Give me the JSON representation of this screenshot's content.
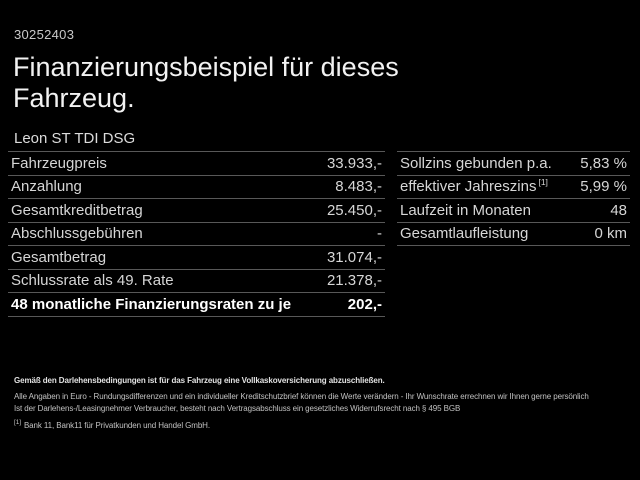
{
  "header": {
    "id_number": "30252403",
    "title": "Finanzierungsbeispiel für dieses Fahrzeug.",
    "vehicle_model": "Leon ST TDI DSG"
  },
  "finance_table": {
    "rows": [
      {
        "label": "Fahrzeugpreis",
        "value": "33.933,-"
      },
      {
        "label": "Anzahlung",
        "value": "8.483,-"
      },
      {
        "label": "Gesamtkreditbetrag",
        "value": "25.450,-"
      },
      {
        "label": "Abschlussgebühren",
        "value": "-"
      },
      {
        "label": "Gesamtbetrag",
        "value": "31.074,-"
      },
      {
        "label": "Schlussrate als 49. Rate",
        "value": "21.378,-"
      },
      {
        "label": "48 monatliche Finanzierungsraten zu je",
        "value": "202,-"
      }
    ]
  },
  "conditions_table": {
    "rows": [
      {
        "label": "Sollzins gebunden p.a.",
        "value": "5,83 %"
      },
      {
        "label": "effektiver Jahreszins",
        "sup": "[1]",
        "value": "5,99 %"
      },
      {
        "label": "Laufzeit in Monaten",
        "value": "48"
      },
      {
        "label": "Gesamtlaufleistung",
        "value": "0 km"
      }
    ]
  },
  "footer": {
    "insurance_note": "Gemäß den Darlehensbedingungen ist für das Fahrzeug eine Vollkaskoversicherung abzuschließen.",
    "disclaimer": "Alle Angaben in Euro - Rundungsdifferenzen und ein individueller Kreditschutzbrief können die Werte verändern - Ihr Wunschrate errechnen wir Ihnen gerne persönlich",
    "withdrawal_note": "Ist der Darlehens-/Leasingnehmer Verbraucher, besteht nach Vertragsabschluss ein gesetzliches Widerrufsrecht nach § 495 BGB",
    "footnote_marker": "[1]",
    "footnote_text": "Bank 11, Bank11 für Privatkunden und Handel GmbH."
  },
  "colors": {
    "background": "#000000",
    "text_primary": "#d6d6d6",
    "text_title": "#f2f2f2",
    "text_bold_row": "#ffffff",
    "separator": "#585858"
  }
}
